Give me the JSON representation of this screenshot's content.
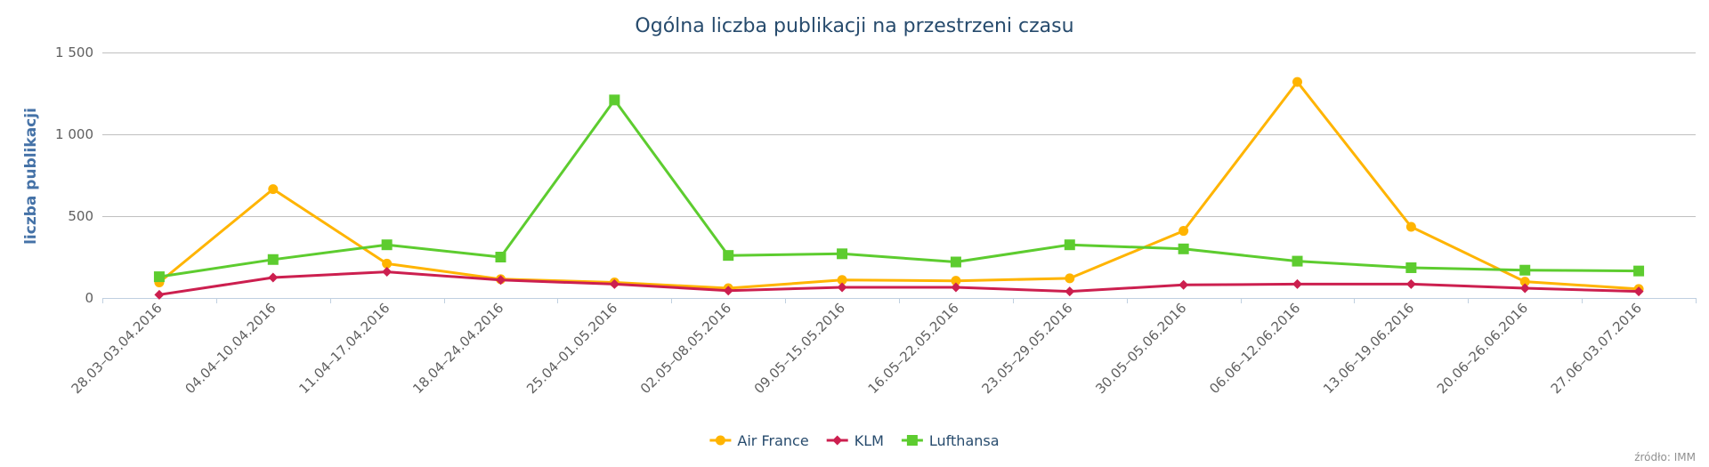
{
  "chart_data": {
    "type": "line",
    "title": "Ogólna liczba publikacji na przestrzeni czasu",
    "ylabel": "liczba publikacji",
    "ylim": [
      0,
      1500
    ],
    "yticks": [
      0,
      500,
      1000,
      1500
    ],
    "ytick_labels": [
      "0",
      "500",
      "1 000",
      "1 500"
    ],
    "grid": true,
    "legend_position": "bottom-center",
    "categories": [
      "28.03–03.04.2016",
      "04.04–10.04.2016",
      "11.04–17.04.2016",
      "18.04–24.04.2016",
      "25.04–01.05.2016",
      "02.05–08.05.2016",
      "09.05–15.05.2016",
      "16.05–22.05.2016",
      "23.05–29.05.2016",
      "30.05–05.06.2016",
      "06.06–12.06.2016",
      "13.06–19.06.2016",
      "20.06–26.06.2016",
      "27.06–03.07.2016"
    ],
    "series": [
      {
        "name": "Air France",
        "color": "#ffb400",
        "marker": "circle",
        "values": [
          95,
          665,
          210,
          115,
          95,
          60,
          110,
          105,
          120,
          410,
          1320,
          435,
          100,
          55
        ]
      },
      {
        "name": "KLM",
        "color": "#cc1f4f",
        "marker": "diamond",
        "values": [
          20,
          125,
          160,
          110,
          85,
          45,
          65,
          65,
          40,
          80,
          85,
          85,
          60,
          40
        ]
      },
      {
        "name": "Lufthansa",
        "color": "#5dcc2f",
        "marker": "square",
        "values": [
          130,
          235,
          325,
          250,
          1210,
          260,
          270,
          220,
          325,
          300,
          225,
          185,
          170,
          165
        ]
      }
    ],
    "credits": "źródło: IMM"
  }
}
